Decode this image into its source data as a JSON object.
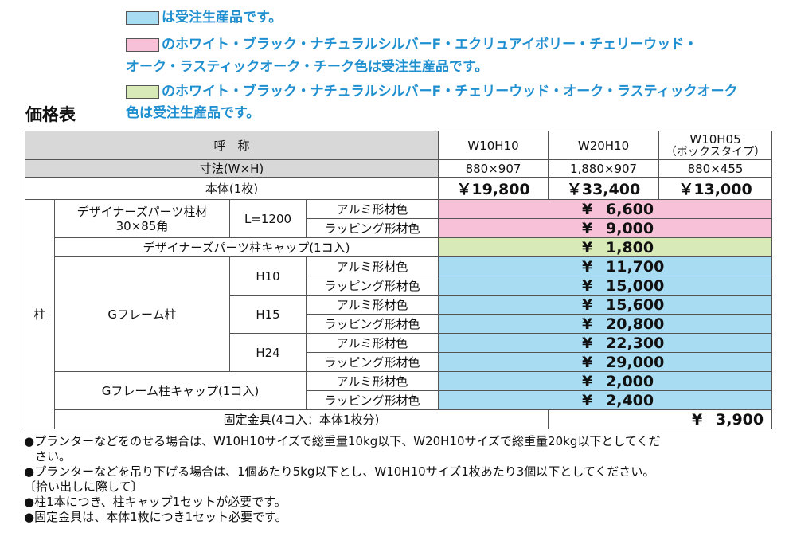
{
  "legend": {
    "blue_text": "は受注生産品です。",
    "pink_text_1": "のホワイト・ブラック・ナチュラルシルバーF・エクリュアイボリー・チェリーウッド・",
    "pink_text_2": "オーク・ラスティックオーク・チーク色は受注生産品です。",
    "green_text_1": "のホワイト・ブラック・ナチュラルシルバーF・チェリーウッド・オーク・ラスティックオーク",
    "green_text_2": "色は受注生産品です。",
    "colors": {
      "blue": "#a8dcf2",
      "pink": "#f7c2d8",
      "green": "#d8eab8",
      "text": "#1f8fd0"
    }
  },
  "title": "価格表",
  "table": {
    "header_name": "呼　称",
    "col1": "W10H10",
    "col2": "W20H10",
    "col3_line1": "W10H05",
    "col3_line2": "（ボックスタイプ）",
    "dims_label": "寸法(W×H)",
    "dims": [
      "880×907",
      "1,880×907",
      "880×455"
    ],
    "body_label": "本体(1枚)",
    "body_prices": [
      "￥19,800",
      "￥33,400",
      "￥13,000"
    ],
    "post_label": "柱",
    "designer_post_line1": "デザイナーズパーツ柱材",
    "designer_post_line2": "30×85角",
    "length": "L=1200",
    "alu": "アルミ形材色",
    "wrap": "ラッピング形材色",
    "yen": "¥",
    "designer_alu_price": "6,600",
    "designer_wrap_price": "9,000",
    "designer_cap_label": "デザイナーズパーツ柱キャップ(1コ入)",
    "designer_cap_price": "1,800",
    "g_post_label": "Gフレーム柱",
    "h10": "H10",
    "h15": "H15",
    "h24": "H24",
    "h10_alu": "11,700",
    "h10_wrap": "15,000",
    "h15_alu": "15,600",
    "h15_wrap": "20,800",
    "h24_alu": "22,300",
    "h24_wrap": "29,000",
    "g_cap_label": "Gフレーム柱キャップ(1コ入)",
    "g_cap_alu": "2,000",
    "g_cap_wrap": "2,400",
    "fixing_label": "固定金具(4コ入：本体1枚分)",
    "fixing_price": "3,900"
  },
  "notes": {
    "n1a": "●プランターなどをのせる場合は、W10H10サイズで総重量10kg以下、W20H10サイズで総重量20kg以下としてくだ",
    "n1b": "さい。",
    "n2": "●プランターなどを吊り下げる場合は、1個あたり5kg以下とし、W10H10サイズ1枚あたり3個以下としてください。",
    "n3": "〔拾い出しに際して〕",
    "n4": "●柱1本につき、柱キャップ1セットが必要です。",
    "n5": "●固定金具は、本体1枚につき1セット必要です。"
  }
}
